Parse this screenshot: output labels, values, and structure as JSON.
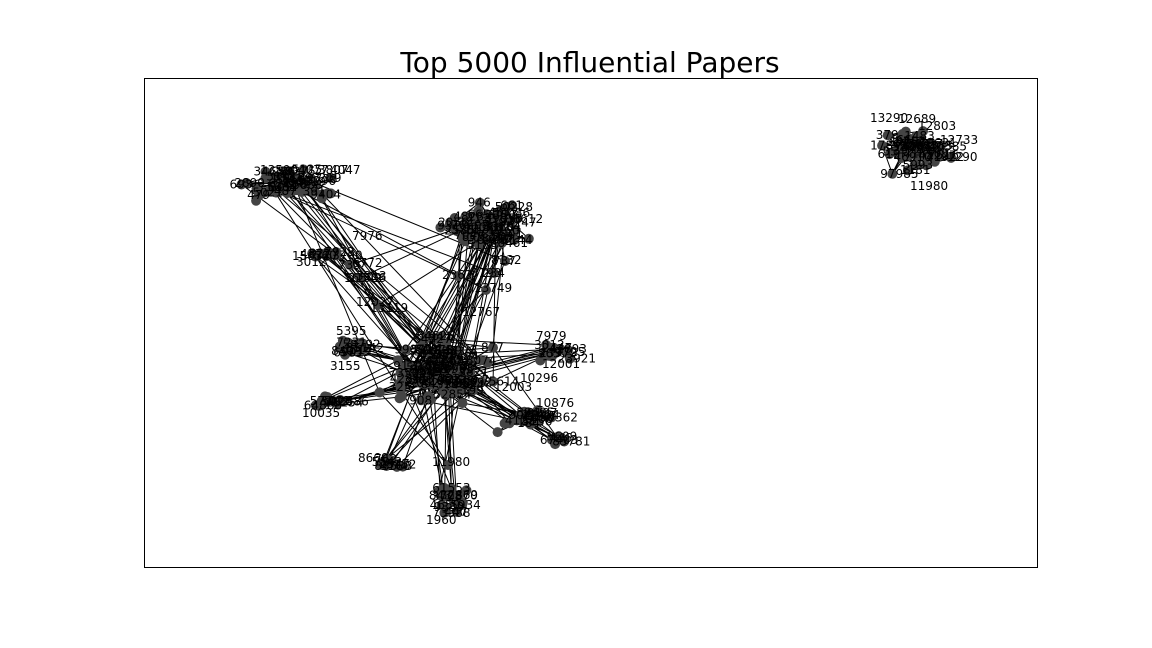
{
  "figure": {
    "title": "Top 5000 Influential Papers"
  },
  "chart_data": {
    "type": "network-graph",
    "title": "Top 5000 Influential Papers",
    "xlabel": "",
    "ylabel": "",
    "axes_ticks": "none",
    "legend": "none",
    "node_color": "#444444",
    "edge_color": "#000000",
    "readable_labels": [
      "13590",
      "4077",
      "3807",
      "4047",
      "7976",
      "6772",
      "4372",
      "3012",
      "15632",
      "3213",
      "16542",
      "12027",
      "13119",
      "2363",
      "8193",
      "8132",
      "13749",
      "12767",
      "7979",
      "5395",
      "10296",
      "12003",
      "3155",
      "10876",
      "12001",
      "3011",
      "10035",
      "11980",
      "11980",
      "12689",
      "13290",
      "12803",
      "12733",
      "1290",
      "1181",
      "8660",
      "9160",
      "1960"
    ]
  }
}
